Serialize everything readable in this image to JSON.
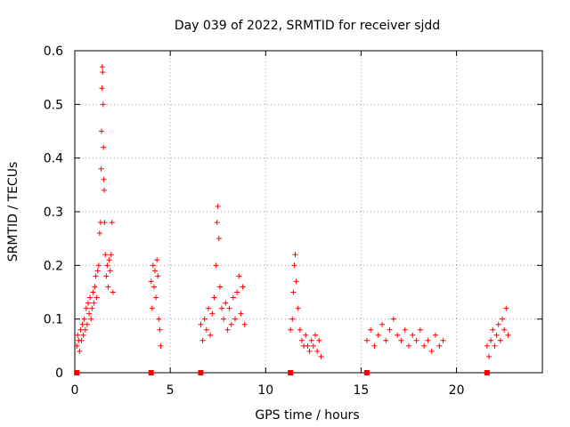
{
  "chart_data": {
    "type": "scatter",
    "title": "Day 039 of 2022, SRMTID for receiver sjdd",
    "xlabel": "GPS time / hours",
    "ylabel": "SRMTID / TECUs",
    "xlim": [
      0,
      24.5
    ],
    "ylim": [
      0,
      0.6
    ],
    "x_ticks": [
      0,
      5,
      10,
      15,
      20
    ],
    "x_tick_labels": [
      "0",
      "5",
      "10",
      "15",
      "20"
    ],
    "y_ticks": [
      0,
      0.1,
      0.2,
      0.3,
      0.4,
      0.5,
      0.6
    ],
    "y_tick_labels": [
      "0",
      "0.1",
      "0.2",
      "0.3",
      "0.4",
      "0.5",
      "0.6"
    ],
    "grid": true,
    "marker": "plus",
    "color": "#ff0000",
    "series": [
      {
        "name": "SRMTID",
        "points": [
          [
            0.1,
            0.05
          ],
          [
            0.15,
            0.07
          ],
          [
            0.2,
            0.06
          ],
          [
            0.25,
            0.04
          ],
          [
            0.3,
            0.08
          ],
          [
            0.35,
            0.06
          ],
          [
            0.4,
            0.09
          ],
          [
            0.45,
            0.07
          ],
          [
            0.5,
            0.1
          ],
          [
            0.55,
            0.08
          ],
          [
            0.6,
            0.12
          ],
          [
            0.65,
            0.09
          ],
          [
            0.7,
            0.13
          ],
          [
            0.75,
            0.11
          ],
          [
            0.8,
            0.14
          ],
          [
            0.85,
            0.1
          ],
          [
            0.9,
            0.12
          ],
          [
            0.95,
            0.15
          ],
          [
            1.0,
            0.13
          ],
          [
            1.05,
            0.16
          ],
          [
            1.1,
            0.18
          ],
          [
            1.15,
            0.14
          ],
          [
            1.2,
            0.19
          ],
          [
            1.25,
            0.2
          ],
          [
            1.3,
            0.26
          ],
          [
            1.35,
            0.28
          ],
          [
            1.38,
            0.38
          ],
          [
            1.4,
            0.45
          ],
          [
            1.42,
            0.53
          ],
          [
            1.44,
            0.57
          ],
          [
            1.46,
            0.56
          ],
          [
            1.48,
            0.5
          ],
          [
            1.5,
            0.42
          ],
          [
            1.52,
            0.36
          ],
          [
            1.54,
            0.34
          ],
          [
            1.56,
            0.28
          ],
          [
            1.6,
            0.22
          ],
          [
            1.65,
            0.18
          ],
          [
            1.7,
            0.2
          ],
          [
            1.75,
            0.16
          ],
          [
            1.8,
            0.21
          ],
          [
            1.85,
            0.19
          ],
          [
            1.9,
            0.22
          ],
          [
            1.95,
            0.28
          ],
          [
            2.0,
            0.15
          ],
          [
            4.0,
            0.17
          ],
          [
            4.05,
            0.12
          ],
          [
            4.1,
            0.2
          ],
          [
            4.15,
            0.16
          ],
          [
            4.2,
            0.19
          ],
          [
            4.25,
            0.14
          ],
          [
            4.3,
            0.21
          ],
          [
            4.35,
            0.18
          ],
          [
            4.4,
            0.1
          ],
          [
            4.45,
            0.08
          ],
          [
            4.5,
            0.05
          ],
          [
            6.6,
            0.09
          ],
          [
            6.7,
            0.06
          ],
          [
            6.8,
            0.1
          ],
          [
            6.9,
            0.08
          ],
          [
            7.0,
            0.12
          ],
          [
            7.1,
            0.07
          ],
          [
            7.2,
            0.11
          ],
          [
            7.3,
            0.14
          ],
          [
            7.4,
            0.2
          ],
          [
            7.45,
            0.28
          ],
          [
            7.5,
            0.31
          ],
          [
            7.55,
            0.25
          ],
          [
            7.6,
            0.16
          ],
          [
            7.7,
            0.12
          ],
          [
            7.8,
            0.1
          ],
          [
            7.9,
            0.13
          ],
          [
            8.0,
            0.08
          ],
          [
            8.1,
            0.12
          ],
          [
            8.2,
            0.09
          ],
          [
            8.3,
            0.14
          ],
          [
            8.4,
            0.1
          ],
          [
            8.5,
            0.15
          ],
          [
            8.6,
            0.18
          ],
          [
            8.7,
            0.11
          ],
          [
            8.8,
            0.16
          ],
          [
            8.9,
            0.09
          ],
          [
            11.3,
            0.08
          ],
          [
            11.4,
            0.1
          ],
          [
            11.45,
            0.15
          ],
          [
            11.5,
            0.2
          ],
          [
            11.55,
            0.22
          ],
          [
            11.6,
            0.17
          ],
          [
            11.7,
            0.12
          ],
          [
            11.8,
            0.08
          ],
          [
            11.9,
            0.06
          ],
          [
            12.0,
            0.05
          ],
          [
            12.1,
            0.07
          ],
          [
            12.2,
            0.05
          ],
          [
            12.3,
            0.04
          ],
          [
            12.4,
            0.06
          ],
          [
            12.5,
            0.05
          ],
          [
            12.6,
            0.07
          ],
          [
            12.7,
            0.04
          ],
          [
            12.8,
            0.06
          ],
          [
            12.9,
            0.03
          ],
          [
            15.3,
            0.06
          ],
          [
            15.5,
            0.08
          ],
          [
            15.7,
            0.05
          ],
          [
            15.9,
            0.07
          ],
          [
            16.1,
            0.09
          ],
          [
            16.3,
            0.06
          ],
          [
            16.5,
            0.08
          ],
          [
            16.7,
            0.1
          ],
          [
            16.9,
            0.07
          ],
          [
            17.1,
            0.06
          ],
          [
            17.3,
            0.08
          ],
          [
            17.5,
            0.05
          ],
          [
            17.7,
            0.07
          ],
          [
            17.9,
            0.06
          ],
          [
            18.1,
            0.08
          ],
          [
            18.3,
            0.05
          ],
          [
            18.5,
            0.06
          ],
          [
            18.7,
            0.04
          ],
          [
            18.9,
            0.07
          ],
          [
            19.1,
            0.05
          ],
          [
            19.3,
            0.06
          ],
          [
            21.6,
            0.05
          ],
          [
            21.7,
            0.03
          ],
          [
            21.8,
            0.06
          ],
          [
            21.9,
            0.08
          ],
          [
            22.0,
            0.05
          ],
          [
            22.1,
            0.07
          ],
          [
            22.2,
            0.09
          ],
          [
            22.3,
            0.06
          ],
          [
            22.4,
            0.1
          ],
          [
            22.5,
            0.08
          ],
          [
            22.6,
            0.12
          ],
          [
            22.7,
            0.07
          ]
        ]
      }
    ],
    "gap_markers_x": [
      0.1,
      4.0,
      6.6,
      11.3,
      15.3,
      21.6
    ]
  }
}
